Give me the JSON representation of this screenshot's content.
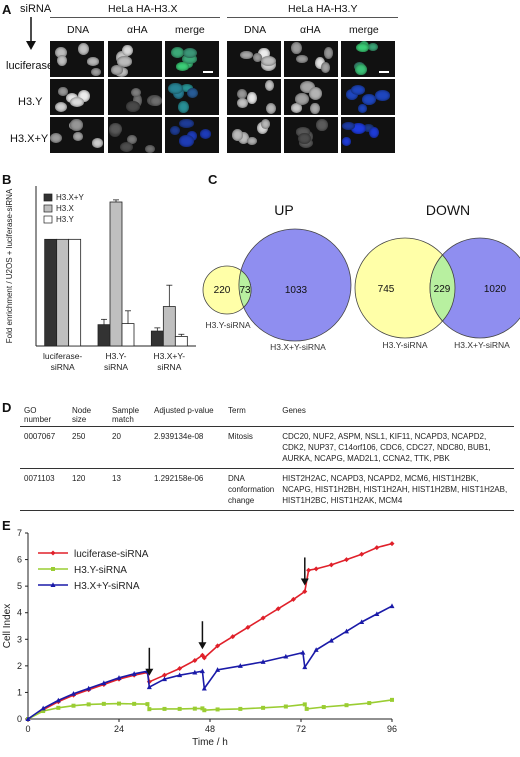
{
  "panel_a": {
    "letter": "A",
    "sirna_label": "siRNA",
    "group_titles": [
      "HeLa HA-H3.X",
      "HeLa HA-H3.Y"
    ],
    "column_headers": [
      "DNA",
      "αHA",
      "merge",
      "DNA",
      "αHA",
      "merge"
    ],
    "row_labels": [
      "luciferase",
      "H3.Y",
      "H3.X+Y"
    ]
  },
  "panel_b": {
    "letter": "B",
    "chart_data": {
      "type": "bar",
      "ylabel": "Fold enrichment / U2OS + luciferase-siRNA",
      "ylim": [
        0,
        1.5
      ],
      "categories": [
        "luciferase-\nsiRNA",
        "H3.Y-\nsiRNA",
        "H3.X+Y-\nsiRNA"
      ],
      "series": [
        {
          "name": "H3.X+Y",
          "color": "#333333",
          "values": [
            1.0,
            0.2,
            0.14
          ],
          "errors": [
            0,
            0.05,
            0.03
          ]
        },
        {
          "name": "H3.X",
          "color": "#bfbfbf",
          "values": [
            1.0,
            1.35,
            0.37
          ],
          "errors": [
            0,
            0.02,
            0.2
          ]
        },
        {
          "name": "H3.Y",
          "color": "#ffffff",
          "values": [
            1.0,
            0.21,
            0.09
          ],
          "errors": [
            0,
            0.12,
            0.02
          ]
        }
      ],
      "legend_position": "top-left"
    }
  },
  "panel_c": {
    "letter": "C",
    "up": {
      "title": "UP",
      "left_only": "220",
      "overlap": "73",
      "right_only": "1033",
      "left_label": "H3.Y-siRNA",
      "right_label": "H3.X+Y-siRNA"
    },
    "down": {
      "title": "DOWN",
      "left_only": "745",
      "overlap": "229",
      "right_only": "1020",
      "left_label": "H3.Y-siRNA",
      "right_label": "H3.X+Y-siRNA"
    }
  },
  "panel_d": {
    "letter": "D",
    "headers": [
      "GO number",
      "Node size",
      "Sample match",
      "Adjusted p-value",
      "Term",
      "Genes"
    ],
    "rows": [
      {
        "go": "0007067",
        "node": "250",
        "sample": "20",
        "p": "2.939134e-08",
        "term": "Mitosis",
        "genes": "CDC20, NUF2, ASPM, NSL1, KIF11, NCAPD3, NCAPD2, CDK2, NUP37, C14orf106, CDC6, CDC27, NDC80, BUB1, AURKA, NCAPG, MAD2L1, CCNA2, TTK, PBK"
      },
      {
        "go": "0071103",
        "node": "120",
        "sample": "13",
        "p": "1.292158e-06",
        "term": "DNA conformation change",
        "genes": "HIST2H2AC, NCAPD3, NCAPD2, MCM6, HIST1H2BK, NCAPG, HIST1H2BH, HIST1H2AH, HIST1H2BM, HIST1H2AB, HIST1H2BC, HIST1H2AK, MCM4"
      }
    ]
  },
  "panel_e": {
    "letter": "E",
    "chart_data": {
      "type": "line",
      "xlabel": "Time / h",
      "ylabel": "Cell Index",
      "xlim": [
        0,
        96
      ],
      "ylim": [
        0,
        7
      ],
      "xticks": [
        0,
        24,
        48,
        72,
        96
      ],
      "yticks": [
        0,
        1,
        2,
        3,
        4,
        5,
        6,
        7
      ],
      "arrows_at_h": [
        32,
        46,
        73
      ],
      "legend_position": "top-left",
      "series": [
        {
          "name": "luciferase-siRNA",
          "color": "#e0202a",
          "marker": "diamond",
          "x": [
            0,
            4,
            8,
            12,
            16,
            20,
            24,
            28,
            31.5,
            32,
            36,
            40,
            44,
            46,
            46.5,
            50,
            54,
            58,
            62,
            66,
            70,
            73,
            74,
            76,
            80,
            84,
            88,
            92,
            96
          ],
          "y": [
            0,
            0.35,
            0.65,
            0.9,
            1.1,
            1.3,
            1.5,
            1.65,
            1.75,
            1.4,
            1.65,
            1.9,
            2.2,
            2.4,
            2.3,
            2.75,
            3.1,
            3.45,
            3.8,
            4.15,
            4.5,
            4.8,
            5.6,
            5.65,
            5.8,
            6.0,
            6.2,
            6.45,
            6.6
          ]
        },
        {
          "name": "H3.Y-siRNA",
          "color": "#9acd32",
          "marker": "square",
          "x": [
            0,
            4,
            8,
            12,
            16,
            20,
            24,
            28,
            31.5,
            32,
            36,
            40,
            44,
            46,
            46.5,
            50,
            56,
            62,
            68,
            73,
            73.5,
            78,
            84,
            90,
            96
          ],
          "y": [
            0,
            0.3,
            0.42,
            0.5,
            0.55,
            0.57,
            0.58,
            0.57,
            0.56,
            0.37,
            0.38,
            0.38,
            0.39,
            0.4,
            0.33,
            0.36,
            0.38,
            0.42,
            0.47,
            0.55,
            0.38,
            0.45,
            0.52,
            0.6,
            0.72
          ]
        },
        {
          "name": "H3.X+Y-siRNA",
          "color": "#1a1aa8",
          "marker": "triangle",
          "x": [
            0,
            4,
            8,
            12,
            16,
            20,
            24,
            28,
            31.5,
            32,
            36,
            40,
            44,
            46,
            46.5,
            50,
            56,
            62,
            68,
            72.5,
            73,
            76,
            80,
            84,
            88,
            92,
            96
          ],
          "y": [
            0,
            0.4,
            0.7,
            0.95,
            1.15,
            1.35,
            1.55,
            1.7,
            1.8,
            1.2,
            1.5,
            1.65,
            1.75,
            1.8,
            1.15,
            1.85,
            2.0,
            2.15,
            2.35,
            2.5,
            1.95,
            2.6,
            2.95,
            3.3,
            3.65,
            3.95,
            4.25
          ]
        }
      ]
    }
  }
}
